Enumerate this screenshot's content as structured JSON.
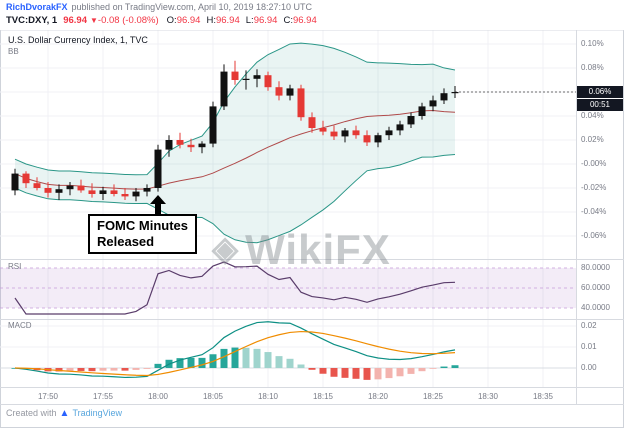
{
  "header": {
    "author": "RichDvorakFX",
    "published": "published on TradingView.com, April 10, 2019 18:27:10 UTC",
    "symbol": "TVC:DXY, 1",
    "price": "96.94",
    "direction_icon": "▼",
    "change": "-0.08 (-0.08%)",
    "ohlc": [
      {
        "label": "O:",
        "value": "96.94"
      },
      {
        "label": "H:",
        "value": "96.94"
      },
      {
        "label": "L:",
        "value": "96.94"
      },
      {
        "label": "C:",
        "value": "96.94"
      }
    ]
  },
  "main_pane": {
    "title": "U.S. Dollar Currency Index, 1, TVC",
    "indicator_label": "BB",
    "price_axis": [
      "0.10%",
      "0.08%",
      "0.06%",
      "0.04%",
      "0.02%",
      "-0.00%",
      "-0.02%",
      "-0.04%",
      "-0.06%"
    ],
    "last_price_label": "0.06%",
    "countdown": "00:51",
    "annotation_line1": "FOMC Minutes",
    "annotation_line2": "Released"
  },
  "rsi_pane": {
    "label": "RSI",
    "axis": [
      "80.0000",
      "60.0000",
      "40.0000"
    ]
  },
  "macd_pane": {
    "label": "MACD",
    "axis": [
      "0.02",
      "0.01",
      "0.00"
    ]
  },
  "time_axis": [
    "17:50",
    "17:55",
    "18:00",
    "18:05",
    "18:10",
    "18:15",
    "18:20",
    "18:25",
    "18:30",
    "18:35"
  ],
  "watermark": {
    "icon": "◈",
    "text": "WikiFX"
  },
  "footer": {
    "created_with": "Created with",
    "logo_icon": "▲",
    "brand": "TradingView"
  },
  "colors": {
    "grid": "#f0f1f5",
    "grid_dark": "#d9dce3",
    "border": "#d7dae0",
    "up": "#111111",
    "down": "#e53935",
    "bb_line": "#2a9687",
    "bb_basis": "#b04a4a",
    "bb_fill": "rgba(42,150,135,0.10)",
    "rsi": "#5a3d6b",
    "rsi_band": "rgba(155,100,190,0.12)",
    "rsi_level": "#c9a0dc",
    "macd_line": "#0d8f84",
    "macd_signal": "#f08c00",
    "hist_up": "#26a69a",
    "hist_up_fade": "#9fd4cd",
    "hist_down": "#e8554d",
    "hist_down_fade": "#f3b3ae",
    "accent_link": "#2962ff",
    "negative_red": "#f23645",
    "badge_bg": "#131722"
  },
  "chart_data": {
    "type": "candlestick",
    "title": "U.S. Dollar Currency Index, 1 minute, TVC",
    "ylabel": "% change",
    "ylim": [
      -0.073,
      0.112
    ],
    "x_range": [
      "17:46",
      "18:38"
    ],
    "indicators": {
      "bb": {
        "period": 20,
        "mult": 2,
        "min_halfwidth": 0.012
      },
      "rsi": {
        "period": 14,
        "levels": [
          80,
          60,
          40
        ],
        "ylim": [
          20,
          90
        ]
      },
      "macd": {
        "fast": 12,
        "slow": 26,
        "signal": 9,
        "ylim": [
          -0.008,
          0.023
        ]
      }
    },
    "annotation": {
      "text": "FOMC Minutes Released",
      "at": "18:00"
    },
    "last_close_pct": 0.06,
    "candles": [
      {
        "t": "17:47",
        "o": -0.022,
        "h": -0.004,
        "l": -0.026,
        "c": -0.008
      },
      {
        "t": "17:48",
        "o": -0.008,
        "h": -0.006,
        "l": -0.02,
        "c": -0.016
      },
      {
        "t": "17:49",
        "o": -0.016,
        "h": -0.011,
        "l": -0.022,
        "c": -0.02
      },
      {
        "t": "17:50",
        "o": -0.02,
        "h": -0.015,
        "l": -0.028,
        "c": -0.024
      },
      {
        "t": "17:51",
        "o": -0.024,
        "h": -0.017,
        "l": -0.03,
        "c": -0.021
      },
      {
        "t": "17:52",
        "o": -0.021,
        "h": -0.015,
        "l": -0.026,
        "c": -0.018
      },
      {
        "t": "17:53",
        "o": -0.018,
        "h": -0.013,
        "l": -0.024,
        "c": -0.022
      },
      {
        "t": "17:54",
        "o": -0.022,
        "h": -0.016,
        "l": -0.028,
        "c": -0.025
      },
      {
        "t": "17:55",
        "o": -0.025,
        "h": -0.019,
        "l": -0.03,
        "c": -0.022
      },
      {
        "t": "17:56",
        "o": -0.022,
        "h": -0.017,
        "l": -0.027,
        "c": -0.025
      },
      {
        "t": "17:57",
        "o": -0.025,
        "h": -0.02,
        "l": -0.03,
        "c": -0.027
      },
      {
        "t": "17:58",
        "o": -0.027,
        "h": -0.02,
        "l": -0.031,
        "c": -0.023
      },
      {
        "t": "17:59",
        "o": -0.023,
        "h": -0.017,
        "l": -0.027,
        "c": -0.02
      },
      {
        "t": "18:00",
        "o": -0.02,
        "h": 0.016,
        "l": -0.023,
        "c": 0.012
      },
      {
        "t": "18:01",
        "o": 0.012,
        "h": 0.024,
        "l": 0.006,
        "c": 0.02
      },
      {
        "t": "18:02",
        "o": 0.02,
        "h": 0.026,
        "l": 0.013,
        "c": 0.016
      },
      {
        "t": "18:03",
        "o": 0.016,
        "h": 0.021,
        "l": 0.01,
        "c": 0.014
      },
      {
        "t": "18:04",
        "o": 0.014,
        "h": 0.019,
        "l": 0.009,
        "c": 0.017
      },
      {
        "t": "18:05",
        "o": 0.017,
        "h": 0.052,
        "l": 0.014,
        "c": 0.048
      },
      {
        "t": "18:06",
        "o": 0.048,
        "h": 0.083,
        "l": 0.045,
        "c": 0.077
      },
      {
        "t": "18:07",
        "o": 0.077,
        "h": 0.086,
        "l": 0.066,
        "c": 0.07
      },
      {
        "t": "18:08",
        "o": 0.07,
        "h": 0.078,
        "l": 0.062,
        "c": 0.071
      },
      {
        "t": "18:09",
        "o": 0.071,
        "h": 0.079,
        "l": 0.064,
        "c": 0.074
      },
      {
        "t": "18:10",
        "o": 0.074,
        "h": 0.077,
        "l": 0.061,
        "c": 0.064
      },
      {
        "t": "18:11",
        "o": 0.064,
        "h": 0.069,
        "l": 0.053,
        "c": 0.057
      },
      {
        "t": "18:12",
        "o": 0.057,
        "h": 0.066,
        "l": 0.053,
        "c": 0.063
      },
      {
        "t": "18:13",
        "o": 0.063,
        "h": 0.066,
        "l": 0.036,
        "c": 0.039
      },
      {
        "t": "18:14",
        "o": 0.039,
        "h": 0.043,
        "l": 0.026,
        "c": 0.03
      },
      {
        "t": "18:15",
        "o": 0.03,
        "h": 0.036,
        "l": 0.024,
        "c": 0.027
      },
      {
        "t": "18:16",
        "o": 0.027,
        "h": 0.032,
        "l": 0.02,
        "c": 0.023
      },
      {
        "t": "18:17",
        "o": 0.023,
        "h": 0.03,
        "l": 0.018,
        "c": 0.028
      },
      {
        "t": "18:18",
        "o": 0.028,
        "h": 0.032,
        "l": 0.021,
        "c": 0.024
      },
      {
        "t": "18:19",
        "o": 0.024,
        "h": 0.028,
        "l": 0.015,
        "c": 0.018
      },
      {
        "t": "18:20",
        "o": 0.018,
        "h": 0.026,
        "l": 0.014,
        "c": 0.024
      },
      {
        "t": "18:21",
        "o": 0.024,
        "h": 0.031,
        "l": 0.02,
        "c": 0.028
      },
      {
        "t": "18:22",
        "o": 0.028,
        "h": 0.036,
        "l": 0.024,
        "c": 0.033
      },
      {
        "t": "18:23",
        "o": 0.033,
        "h": 0.043,
        "l": 0.03,
        "c": 0.04
      },
      {
        "t": "18:24",
        "o": 0.04,
        "h": 0.051,
        "l": 0.037,
        "c": 0.048
      },
      {
        "t": "18:25",
        "o": 0.048,
        "h": 0.057,
        "l": 0.044,
        "c": 0.053
      },
      {
        "t": "18:26",
        "o": 0.053,
        "h": 0.063,
        "l": 0.05,
        "c": 0.059
      },
      {
        "t": "18:27",
        "o": 0.059,
        "h": 0.065,
        "l": 0.055,
        "c": 0.06
      }
    ]
  }
}
